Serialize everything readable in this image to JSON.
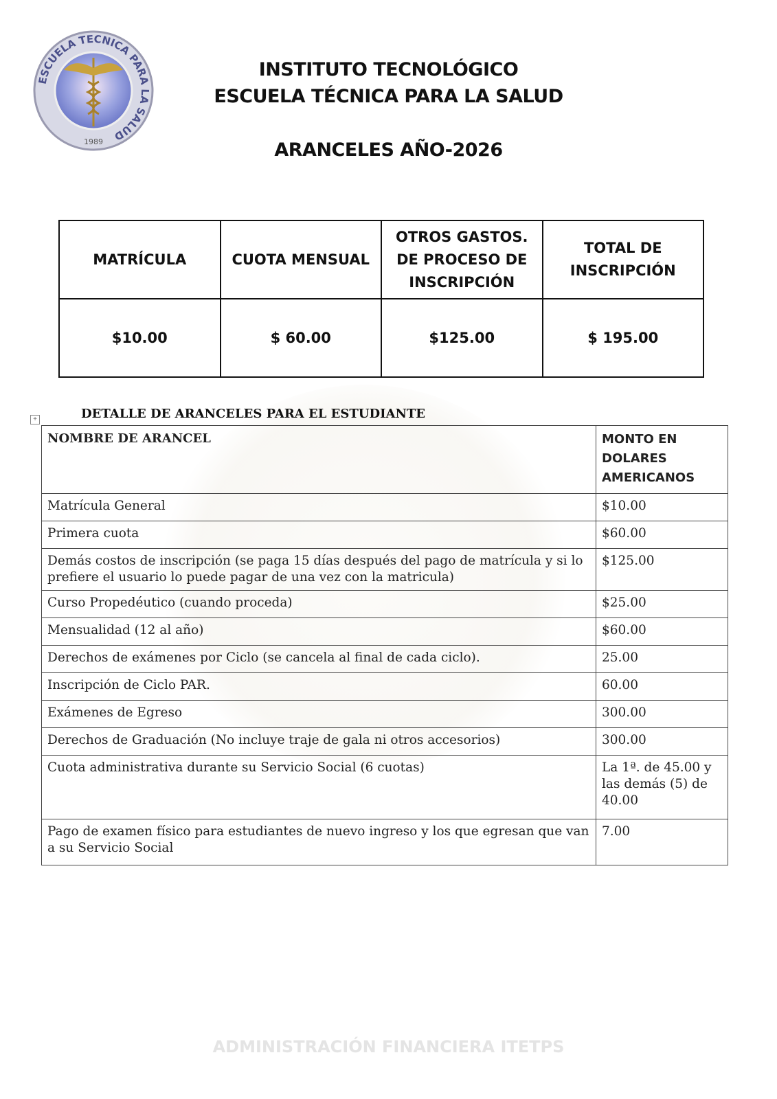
{
  "header": {
    "line1": "INSTITUTO TECNOLÓGICO",
    "line2": "ESCUELA TÉCNICA PARA LA SALUD",
    "line3": "ARANCELES AÑO-2026"
  },
  "logo": {
    "text": "ESCUELA TECNICA PARA LA SALUD",
    "year": "1989"
  },
  "summary": {
    "headers": [
      "MATRÍCULA",
      "CUOTA MENSUAL",
      "OTROS GASTOS. DE PROCESO DE INSCRIPCIÓN",
      "TOTAL DE INSCRIPCIÓN"
    ],
    "values": [
      "$10.00",
      "$ 60.00",
      "$125.00",
      "$ 195.00"
    ]
  },
  "detail": {
    "title": "DETALLE DE ARANCELES PARA EL ESTUDIANTE",
    "col1": "NOMBRE DE ARANCEL",
    "col2": "MONTO EN DOLARES AMERICANOS",
    "rows": [
      {
        "name": "Matrícula General",
        "amount": "$10.00"
      },
      {
        "name": "Primera cuota",
        "amount": "$60.00"
      },
      {
        "name": "Demás costos de inscripción (se paga 15 días después del pago de matrícula y si lo prefiere el usuario lo puede pagar de una vez con la matricula)",
        "amount": "$125.00"
      },
      {
        "name": "Curso Propedéutico (cuando proceda)",
        "amount": "$25.00"
      },
      {
        "name": "Mensualidad (12 al año)",
        "amount": "$60.00"
      },
      {
        "name": "Derechos de exámenes por Ciclo (se cancela al final de cada ciclo).",
        "amount": "25.00"
      },
      {
        "name": "Inscripción de Ciclo PAR.",
        "amount": "60.00"
      },
      {
        "name": "Exámenes de Egreso",
        "amount": "300.00"
      },
      {
        "name": "Derechos de Graduación (No incluye traje de gala ni otros accesorios)",
        "amount": "300.00"
      },
      {
        "name": "Cuota administrativa durante su Servicio Social (6 cuotas)",
        "amount": "La 1ª. de 45.00 y las demás (5) de 40.00"
      },
      {
        "name": "Pago de examen físico para estudiantes de nuevo ingreso y los que egresan que van a su Servicio Social",
        "amount": "7.00"
      }
    ]
  },
  "footer": "ADMINISTRACIÓN FINANCIERA ITETPS"
}
